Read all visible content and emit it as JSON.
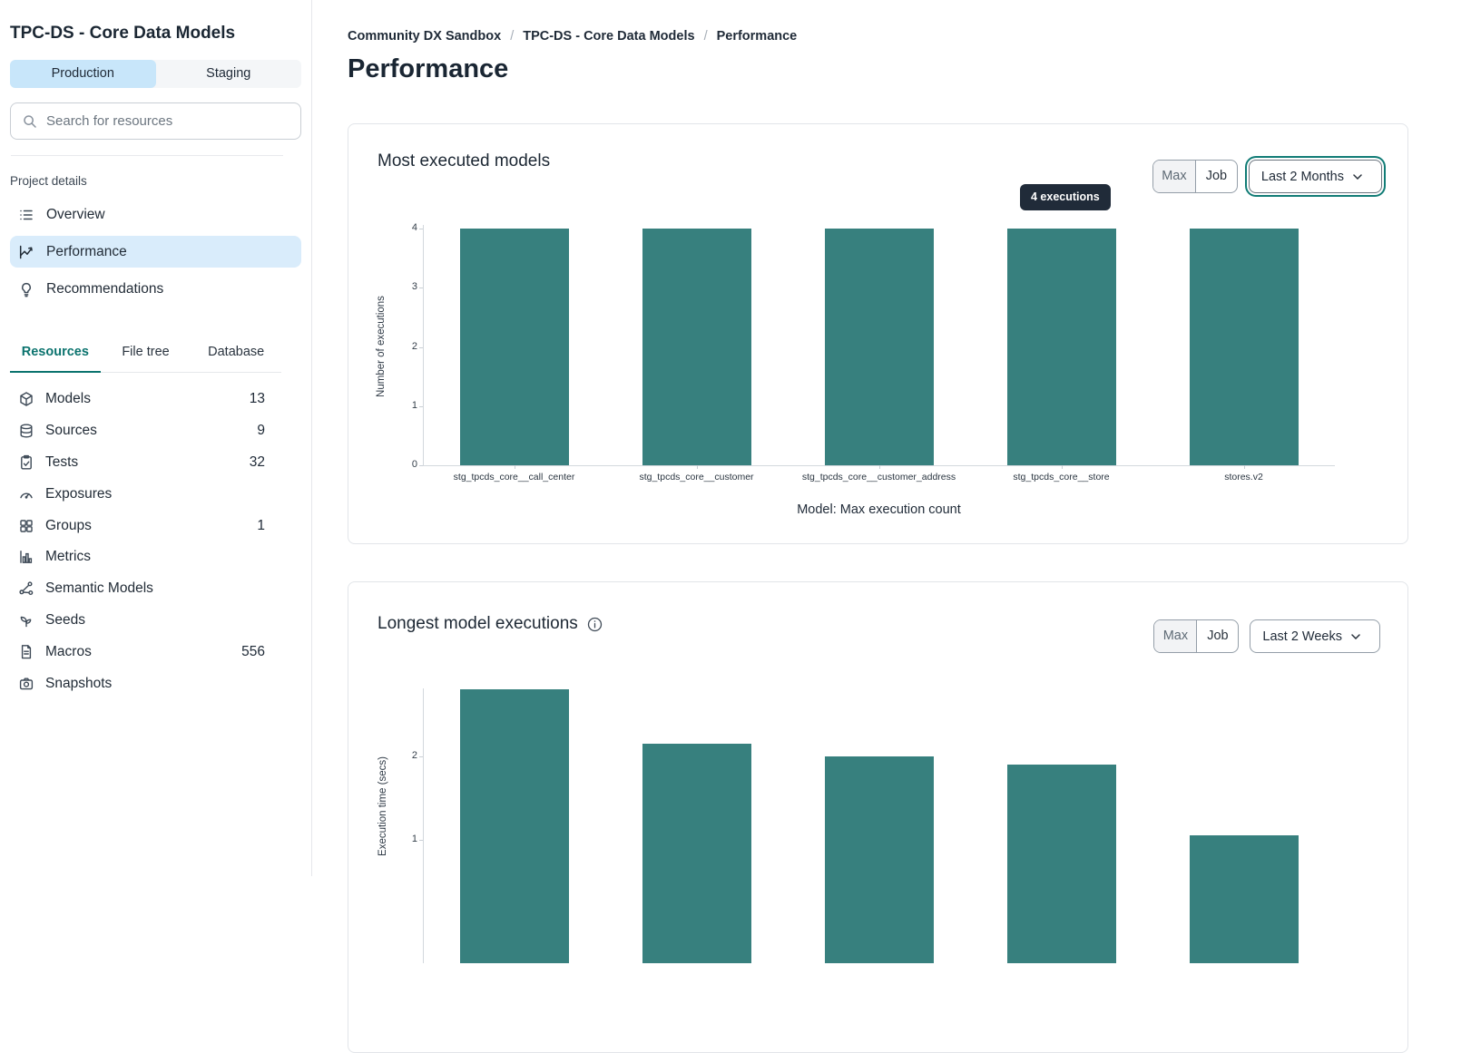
{
  "sidebar": {
    "title": "TPC-DS - Core Data Models",
    "environment_tabs": [
      {
        "label": "Production",
        "active": true
      },
      {
        "label": "Staging",
        "active": false
      }
    ],
    "search_placeholder": "Search for resources",
    "project_details_label": "Project details",
    "project_nav": [
      {
        "label": "Overview",
        "icon": "list-icon",
        "active": false
      },
      {
        "label": "Performance",
        "icon": "chart-line-icon",
        "active": true
      },
      {
        "label": "Recommendations",
        "icon": "lightbulb-icon",
        "active": false
      }
    ],
    "resource_tabs": [
      {
        "label": "Resources",
        "active": true
      },
      {
        "label": "File tree",
        "active": false
      },
      {
        "label": "Database",
        "active": false
      }
    ],
    "resources": [
      {
        "label": "Models",
        "icon": "cube-icon",
        "count": "13"
      },
      {
        "label": "Sources",
        "icon": "database-icon",
        "count": "9"
      },
      {
        "label": "Tests",
        "icon": "clipboard-check-icon",
        "count": "32"
      },
      {
        "label": "Exposures",
        "icon": "gauge-icon",
        "count": ""
      },
      {
        "label": "Groups",
        "icon": "grid-icon",
        "count": "1"
      },
      {
        "label": "Metrics",
        "icon": "bar-chart-icon",
        "count": ""
      },
      {
        "label": "Semantic Models",
        "icon": "network-icon",
        "count": ""
      },
      {
        "label": "Seeds",
        "icon": "seedling-icon",
        "count": ""
      },
      {
        "label": "Macros",
        "icon": "file-text-icon",
        "count": "556"
      },
      {
        "label": "Snapshots",
        "icon": "camera-icon",
        "count": ""
      }
    ]
  },
  "breadcrumb": {
    "items": [
      {
        "label": "Community DX Sandbox",
        "current": false
      },
      {
        "label": "TPC-DS - Core Data Models",
        "current": false
      },
      {
        "label": "Performance",
        "current": true
      }
    ]
  },
  "page_title": "Performance",
  "cards": [
    {
      "title": "Most executed models",
      "toggle": [
        "Max",
        "Job"
      ],
      "pressed": "Max",
      "range_selector": "Last 2 Months",
      "range_focused": true,
      "tooltip": "4 executions"
    },
    {
      "title": "Longest model executions",
      "toggle": [
        "Max",
        "Job"
      ],
      "pressed": "Max",
      "range_selector": "Last 2 Weeks",
      "range_focused": false,
      "has_info_icon": true
    }
  ],
  "colors": {
    "bar_teal": "#37807E",
    "accent_teal": "#117C76",
    "active_item_blue": "#D9ECFB",
    "active_tab_blue": "#C8E6FA",
    "tooltip_bg": "#202B39"
  },
  "chart_data": [
    {
      "type": "bar",
      "title": "Most executed models",
      "categories": [
        "stg_tpcds_core__call_center",
        "stg_tpcds_core__customer",
        "stg_tpcds_core__customer_address",
        "stg_tpcds_core__store",
        "stores.v2"
      ],
      "values": [
        4,
        4,
        4,
        4,
        4
      ],
      "ylabel": "Number of executions",
      "xlabel": "Model: Max execution count",
      "ylim": [
        0,
        4
      ],
      "yticks": [
        0,
        1,
        2,
        3,
        4
      ],
      "grid": false,
      "legend": false,
      "bar_color": "#37807E",
      "hover_tooltip": "4 executions"
    },
    {
      "type": "bar",
      "title": "Longest model executions",
      "categories": [
        "",
        "",
        "",
        "",
        ""
      ],
      "values": [
        2.8,
        2.15,
        2.0,
        1.9,
        1.05
      ],
      "ylabel": "Execution time (secs)",
      "xlabel": "",
      "ylim": [
        0,
        2.8
      ],
      "yticks": [
        1,
        2
      ],
      "grid": false,
      "legend": false,
      "bar_color": "#37807E",
      "note": "chart clipped at bottom edge of viewport; category labels not visible"
    }
  ]
}
